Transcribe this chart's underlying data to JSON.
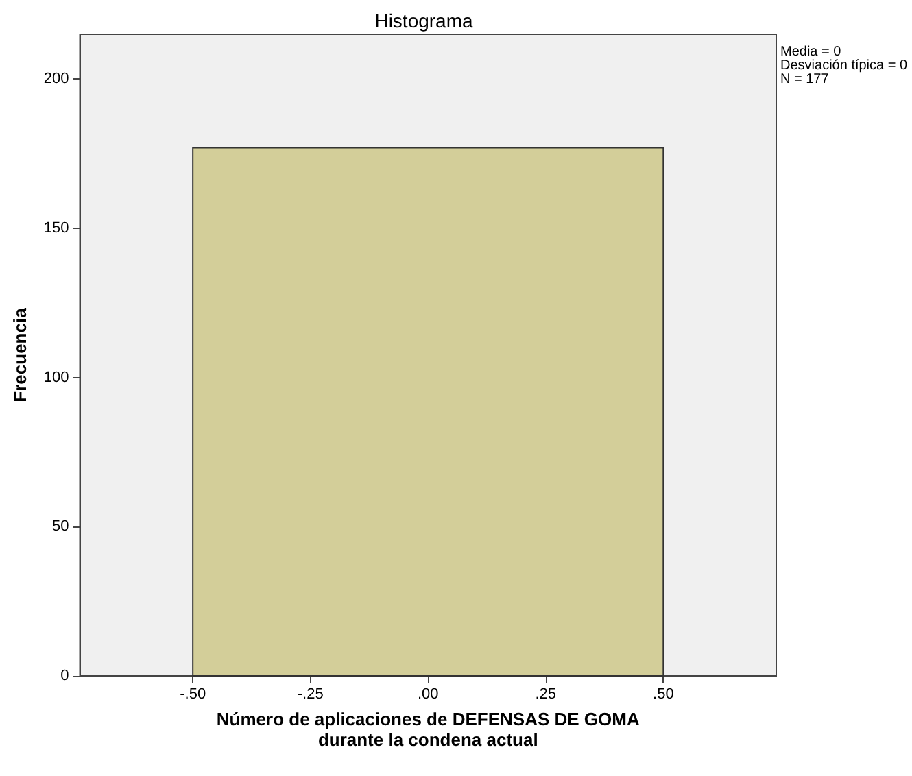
{
  "chart_data": {
    "type": "histogram",
    "title": "Histograma",
    "xlabel": "Número de aplicaciones de DEFENSAS DE GOMA\ndurante la condena actual",
    "ylabel": "Frecuencia",
    "bins": [
      -0.5,
      0.5
    ],
    "values": [
      177
    ],
    "color": "#d3ce99",
    "xlim": [
      -0.74,
      0.74
    ],
    "xticks": [
      {
        "value": -0.5,
        "label": "-.50"
      },
      {
        "value": -0.25,
        "label": "-.25"
      },
      {
        "value": 0,
        "label": ".00"
      },
      {
        "value": 0.25,
        "label": ".25"
      },
      {
        "value": 0.5,
        "label": ".50"
      }
    ],
    "ylim": [
      0,
      215
    ],
    "yticks": [
      0,
      50,
      100,
      150,
      200
    ],
    "grid": false,
    "annotations": [
      "Media = 0",
      "Desviación típica = 0",
      "N = 177"
    ]
  }
}
